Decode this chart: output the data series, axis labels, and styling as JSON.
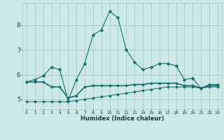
{
  "xlabel": "Humidex (Indice chaleur)",
  "background_color": "#cce8e8",
  "grid_color": "#aacccc",
  "line_color": "#1a6e6a",
  "x": [
    0,
    1,
    2,
    3,
    4,
    5,
    6,
    7,
    8,
    9,
    10,
    11,
    12,
    13,
    14,
    15,
    16,
    17,
    18,
    19,
    20,
    21,
    22,
    23
  ],
  "line1_y": [
    5.7,
    5.8,
    5.95,
    6.3,
    6.2,
    4.95,
    5.8,
    6.45,
    7.6,
    7.8,
    8.55,
    8.3,
    7.0,
    6.5,
    6.2,
    6.3,
    6.45,
    6.45,
    6.35,
    5.8,
    5.85,
    5.45,
    5.6,
    5.6
  ],
  "line2_y": [
    5.7,
    5.7,
    5.7,
    5.5,
    5.5,
    5.05,
    5.15,
    5.5,
    5.55,
    5.55,
    5.55,
    5.55,
    5.55,
    5.6,
    5.6,
    5.65,
    5.65,
    5.65,
    5.65,
    5.55,
    5.55,
    5.45,
    5.55,
    5.55
  ],
  "line3_y": [
    4.9,
    4.9,
    4.9,
    4.9,
    4.9,
    4.9,
    4.95,
    5.0,
    5.05,
    5.1,
    5.15,
    5.2,
    5.25,
    5.3,
    5.35,
    5.4,
    5.45,
    5.5,
    5.5,
    5.5,
    5.5,
    5.45,
    5.5,
    5.5
  ],
  "ylim": [
    4.6,
    8.9
  ],
  "yticks": [
    5,
    6,
    7,
    8
  ],
  "xlim": [
    -0.5,
    23.5
  ]
}
